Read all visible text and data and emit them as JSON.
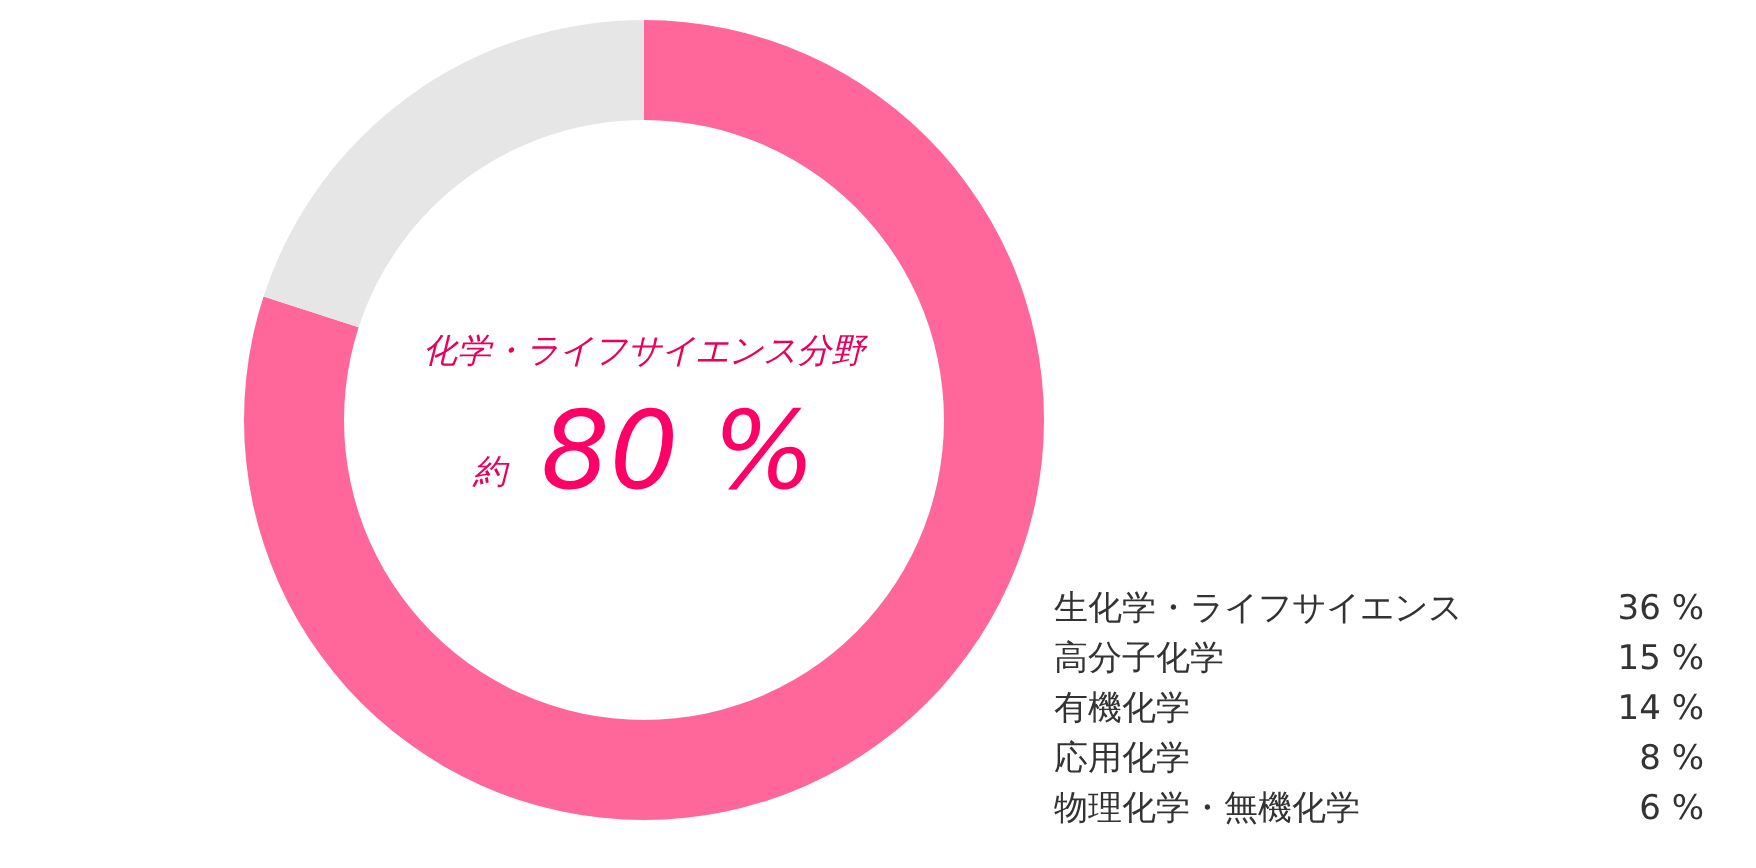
{
  "chart_data": {
    "type": "donut",
    "categories": [
      "化学・ライフサイエンス分野",
      null
    ],
    "values": [
      80,
      20
    ],
    "colors": [
      "#ff6699",
      "#e6e6e6"
    ],
    "value_labels": [
      "約 80 %",
      null
    ],
    "annotations": [
      "生化学・ライフサイエンス 36 %",
      "高分子化学 15 %",
      "有機化学 14 %",
      "応用化学 8 %",
      "物理化学・無機化学 6 %"
    ]
  }
}
